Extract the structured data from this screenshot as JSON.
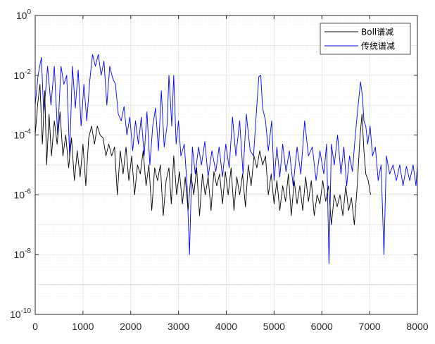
{
  "chart_data": {
    "type": "line",
    "title": "",
    "xlabel": "",
    "ylabel": "",
    "xlim": [
      0,
      8000
    ],
    "ylim": [
      1e-10,
      1
    ],
    "y_scale": "log",
    "grid": true,
    "minor_grid": true,
    "legend_position": "top-right",
    "x_ticks": [
      {
        "value": 0,
        "label": "0"
      },
      {
        "value": 1000,
        "label": "1000"
      },
      {
        "value": 2000,
        "label": "2000"
      },
      {
        "value": 3000,
        "label": "3000"
      },
      {
        "value": 4000,
        "label": "4000"
      },
      {
        "value": 5000,
        "label": "5000"
      },
      {
        "value": 6000,
        "label": "6000"
      },
      {
        "value": 7000,
        "label": "7000"
      },
      {
        "value": 8000,
        "label": "8000"
      }
    ],
    "y_ticks": [
      {
        "value": 1,
        "base": "10",
        "exp": "0"
      },
      {
        "value": 0.01,
        "base": "10",
        "exp": "-2"
      },
      {
        "value": 0.0001,
        "base": "10",
        "exp": "-4"
      },
      {
        "value": 1e-06,
        "base": "10",
        "exp": "-6"
      },
      {
        "value": 1e-08,
        "base": "10",
        "exp": "-8"
      },
      {
        "value": 1e-10,
        "base": "10",
        "exp": "-10"
      }
    ],
    "series": [
      {
        "name": "传统谱减",
        "color": "#0000ff",
        "x": [
          0,
          60,
          130,
          180,
          260,
          330,
          400,
          470,
          540,
          600,
          660,
          720,
          780,
          840,
          900,
          960,
          1020,
          1080,
          1140,
          1200,
          1260,
          1320,
          1380,
          1440,
          1500,
          1560,
          1620,
          1680,
          1740,
          1800,
          1860,
          1920,
          1980,
          2040,
          2100,
          2160,
          2220,
          2280,
          2340,
          2400,
          2460,
          2520,
          2580,
          2640,
          2700,
          2760,
          2800,
          2860,
          2900,
          2950,
          3000,
          3050,
          3120,
          3180,
          3230,
          3290,
          3350,
          3420,
          3480,
          3550,
          3620,
          3700,
          3780,
          3850,
          3920,
          3990,
          4060,
          4130,
          4200,
          4280,
          4350,
          4420,
          4500,
          4570,
          4630,
          4680,
          4720,
          4760,
          4820,
          4880,
          4950,
          5000,
          5060,
          5120,
          5180,
          5250,
          5320,
          5400,
          5480,
          5560,
          5640,
          5720,
          5800,
          5880,
          5960,
          6040,
          6100,
          6150,
          6200,
          6260,
          6330,
          6400,
          6460,
          6520,
          6580,
          6640,
          6700,
          6760,
          6810,
          6850,
          6880,
          6920,
          6960,
          7010,
          7060,
          7120,
          7180,
          7240,
          7300,
          7350,
          7420,
          7490,
          7560,
          7630,
          7700,
          7770,
          7840,
          7910,
          7970,
          8000
        ],
        "y": [
          0.001,
          0.01,
          0.04,
          0.0005,
          0.02,
          0.001,
          0.02,
          0.0001,
          0.02,
          0.005,
          0.01,
          2e-05,
          0.02,
          0.0008,
          0.015,
          0.0002,
          0.005,
          0.0003,
          0.006,
          0.05,
          0.02,
          0.05,
          0.01,
          0.03,
          0.001,
          0.02,
          0.008,
          0.005,
          0.0005,
          0.0003,
          0.0009,
          0.0001,
          0.0004,
          3e-05,
          0.0003,
          5e-05,
          0.0004,
          2e-05,
          0.0006,
          1e-05,
          0.0002,
          0.0008,
          3e-05,
          0.003,
          4e-05,
          0.0002,
          0.01,
          0.0002,
          0.01,
          5e-05,
          0.0003,
          2e-05,
          5e-05,
          2e-06,
          1e-08,
          4e-05,
          5e-06,
          4e-05,
          1e-05,
          6e-05,
          4e-06,
          3e-05,
          6e-06,
          4e-05,
          4e-06,
          5e-05,
          8e-06,
          0.0004,
          2e-05,
          0.0003,
          5e-06,
          0.0005,
          3e-05,
          2e-05,
          0.0006,
          0.009,
          0.01,
          0.0008,
          0.0003,
          3e-05,
          0.0003,
          3e-06,
          4e-05,
          4e-06,
          5e-05,
          6e-06,
          3e-05,
          2e-06,
          4e-05,
          5e-06,
          0.0003,
          2e-05,
          4e-05,
          3e-06,
          3e-05,
          5e-06,
          5e-05,
          5e-09,
          5e-05,
          1e-05,
          0.0001,
          5e-06,
          4e-05,
          2e-06,
          2e-05,
          6e-06,
          0.0001,
          0.001,
          0.006,
          0.002,
          0.0003,
          0.0002,
          5e-05,
          0.0002,
          2e-05,
          4e-05,
          3e-06,
          1e-05,
          1e-08,
          2e-05,
          5e-06,
          1e-05,
          3e-06,
          1e-05,
          2e-06,
          9e-06,
          3e-06,
          1e-05,
          2e-06,
          1e-05
        ]
      },
      {
        "name": "Boll谱减",
        "color": "#000000",
        "x": [
          0,
          50,
          100,
          150,
          200,
          240,
          290,
          340,
          400,
          460,
          520,
          580,
          640,
          700,
          760,
          820,
          880,
          940,
          1000,
          1060,
          1120,
          1180,
          1240,
          1300,
          1360,
          1420,
          1480,
          1540,
          1600,
          1660,
          1720,
          1780,
          1840,
          1900,
          1960,
          2020,
          2080,
          2140,
          2200,
          2260,
          2320,
          2380,
          2440,
          2500,
          2560,
          2620,
          2680,
          2740,
          2800,
          2850,
          2900,
          2960,
          3020,
          3080,
          3140,
          3200,
          3260,
          3320,
          3380,
          3440,
          3500,
          3560,
          3620,
          3680,
          3740,
          3800,
          3860,
          3920,
          3980,
          4040,
          4100,
          4160,
          4220,
          4280,
          4340,
          4400,
          4460,
          4520,
          4580,
          4640,
          4700,
          4760,
          4820,
          4880,
          4940,
          5000,
          5060,
          5120,
          5180,
          5240,
          5300,
          5360,
          5420,
          5480,
          5540,
          5600,
          5660,
          5720,
          5780,
          5840,
          5900,
          5960,
          6020,
          6080,
          6140,
          6200,
          6260,
          6320,
          6380,
          6440,
          6500,
          6560,
          6620,
          6680,
          6740,
          6800,
          6840,
          6880,
          6920,
          6970,
          7020
        ],
        "y": [
          0.0001,
          0.001,
          0.005,
          5e-05,
          0.003,
          1e-05,
          0.0005,
          2e-05,
          0.0003,
          5e-05,
          0.0006,
          2e-05,
          0.0001,
          8e-06,
          8e-05,
          3e-06,
          3e-05,
          4e-06,
          5e-05,
          2e-06,
          8e-05,
          0.0002,
          5e-05,
          0.0002,
          0.0001,
          8e-05,
          2e-05,
          5e-05,
          2e-05,
          4e-05,
          1e-06,
          3e-05,
          5e-06,
          4e-05,
          3e-06,
          2e-05,
          1e-06,
          1e-05,
          5e-06,
          3e-05,
          2e-06,
          1e-05,
          3e-07,
          8e-06,
          3e-06,
          1e-05,
          2e-07,
          3e-06,
          8e-06,
          5e-07,
          2e-05,
          1e-06,
          6e-06,
          5e-07,
          4e-06,
          3e-07,
          5e-06,
          1e-06,
          8e-06,
          2e-07,
          5e-06,
          1e-06,
          4e-06,
          3e-07,
          6e-06,
          2e-06,
          5e-06,
          5e-07,
          6e-06,
          1e-06,
          8e-06,
          3e-07,
          4e-06,
          1e-06,
          5e-06,
          4e-07,
          1e-05,
          2e-06,
          2e-05,
          8e-06,
          3e-05,
          1e-05,
          2e-05,
          1e-06,
          5e-06,
          5e-07,
          3e-06,
          3e-07,
          2e-06,
          6e-07,
          5e-06,
          2e-07,
          3e-06,
          5e-07,
          2e-06,
          3e-07,
          4e-06,
          6e-07,
          3e-06,
          2e-07,
          1e-06,
          5e-07,
          3e-06,
          6e-07,
          2e-06,
          1e-07,
          1e-06,
          4e-07,
          1e-06,
          2e-07,
          2e-06,
          3e-07,
          8e-07,
          1e-07,
          2e-06,
          0.0001,
          0.0005,
          3e-05,
          5e-06,
          3e-06,
          1e-06
        ]
      }
    ]
  },
  "legend": {
    "items": [
      {
        "label": "Boll谱减",
        "color": "#000000"
      },
      {
        "label": "传统谱减",
        "color": "#0000ff"
      }
    ]
  }
}
